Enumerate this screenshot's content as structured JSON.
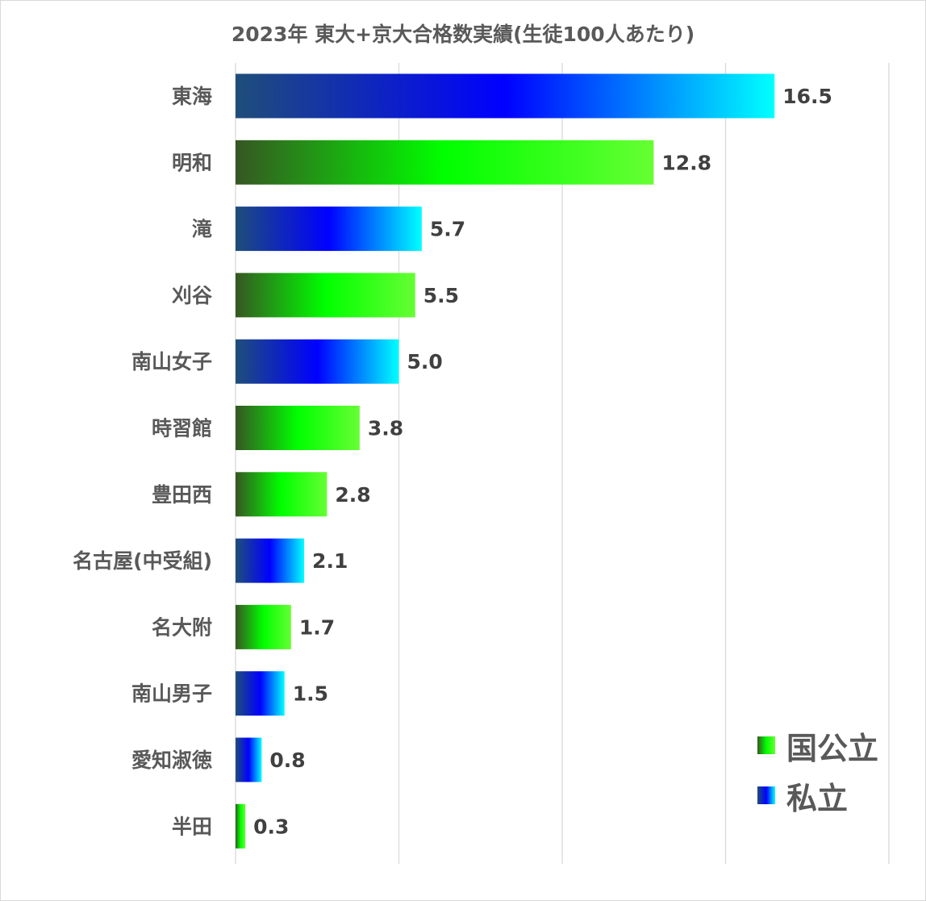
{
  "chart_data": {
    "type": "bar",
    "orientation": "horizontal",
    "title": "2023年 東大+京大合格数実績(生徒100人あたり)",
    "categories": [
      "東海",
      "明和",
      "滝",
      "刈谷",
      "南山女子",
      "時習館",
      "豊田西",
      "名古屋(中受組)",
      "名大附",
      "南山男子",
      "愛知淑徳",
      "半田"
    ],
    "values": [
      16.5,
      12.8,
      5.7,
      5.5,
      5.0,
      3.8,
      2.8,
      2.1,
      1.7,
      1.5,
      0.8,
      0.3
    ],
    "value_labels": [
      "16.5",
      "12.8",
      "5.7",
      "5.5",
      "5.0",
      "3.8",
      "2.8",
      "2.1",
      "1.7",
      "1.5",
      "0.8",
      "0.3"
    ],
    "groups": [
      "私立",
      "国公立",
      "私立",
      "国公立",
      "私立",
      "国公立",
      "国公立",
      "私立",
      "国公立",
      "私立",
      "私立",
      "国公立"
    ],
    "xlim": [
      0,
      20
    ],
    "x_gridlines": [
      0,
      5,
      10,
      15,
      20
    ],
    "x_tick_labels_shown": false,
    "grid": true,
    "legend_position": "bottom-right",
    "legend": [
      {
        "label": "国公立",
        "colors": [
          "#375623",
          "#00ff00",
          "#66ff33"
        ]
      },
      {
        "label": "私立",
        "colors": [
          "#1f4e79",
          "#0000ff",
          "#00ffff"
        ]
      }
    ]
  }
}
